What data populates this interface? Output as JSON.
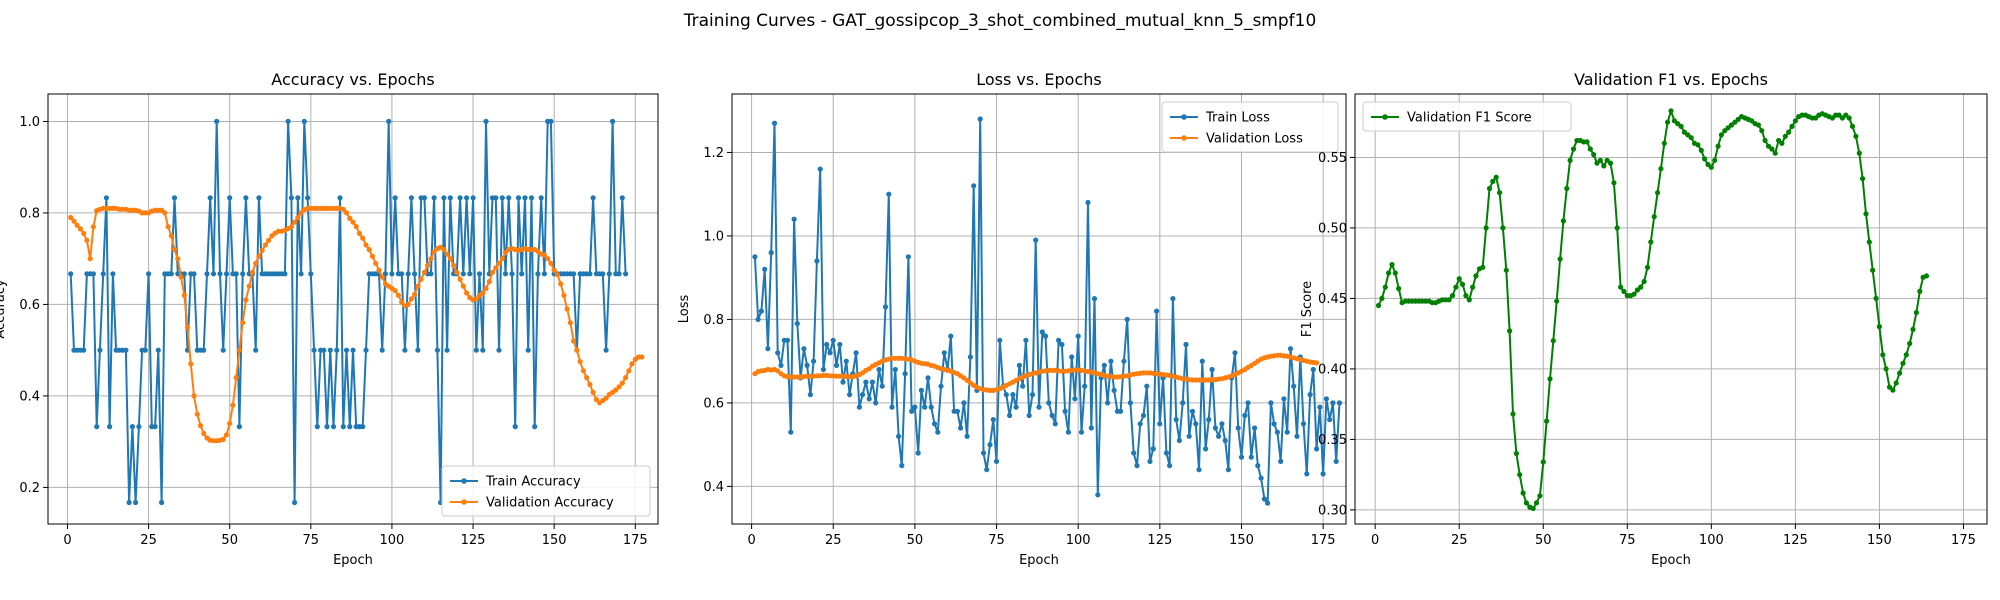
{
  "suptitle": "Training Curves - GAT_gossipcop_3_shot_combined_mutual_knn_5_smpf10",
  "colors": {
    "blue": "#1f77b4",
    "orange": "#ff7f0e",
    "green": "#008000",
    "grid": "#b0b0b0"
  },
  "chart_data": [
    {
      "type": "line",
      "title": "Accuracy vs. Epochs",
      "xlabel": "Epoch",
      "ylabel": "Accuracy",
      "xlim": [
        -6,
        182
      ],
      "ylim": [
        0.12,
        1.06
      ],
      "xticks": [
        0,
        25,
        50,
        75,
        100,
        125,
        150,
        175
      ],
      "yticks": [
        0.2,
        0.4,
        0.6,
        0.8,
        1.0
      ],
      "ytick_decimals": 1,
      "grid": true,
      "legend": "lower right",
      "series": [
        {
          "name": "Train Accuracy",
          "color": "#1f77b4",
          "y": [
            0.667,
            0.5,
            0.5,
            0.5,
            0.5,
            0.667,
            0.667,
            0.667,
            0.333,
            0.5,
            0.667,
            0.833,
            0.333,
            0.667,
            0.5,
            0.5,
            0.5,
            0.5,
            0.167,
            0.333,
            0.167,
            0.333,
            0.5,
            0.5,
            0.667,
            0.333,
            0.333,
            0.5,
            0.167,
            0.667,
            0.667,
            0.667,
            0.833,
            0.667,
            0.667,
            0.667,
            0.5,
            0.667,
            0.667,
            0.5,
            0.5,
            0.5,
            0.667,
            0.833,
            0.667,
            1.0,
            0.667,
            0.5,
            0.667,
            0.833,
            0.667,
            0.667,
            0.333,
            0.667,
            0.833,
            0.667,
            0.667,
            0.5,
            0.833,
            0.667,
            0.667,
            0.667,
            0.667,
            0.667,
            0.667,
            0.667,
            0.667,
            1.0,
            0.833,
            0.167,
            0.833,
            0.667,
            1.0,
            0.833,
            0.667,
            0.5,
            0.333,
            0.5,
            0.5,
            0.333,
            0.5,
            0.333,
            0.5,
            0.833,
            0.333,
            0.5,
            0.333,
            0.5,
            0.333,
            0.333,
            0.333,
            0.5,
            0.667,
            0.667,
            0.667,
            0.667,
            0.5,
            0.667,
            1.0,
            0.667,
            0.833,
            0.667,
            0.667,
            0.5,
            0.667,
            0.833,
            0.667,
            0.5,
            0.833,
            0.833,
            0.667,
            0.667,
            0.833,
            0.5,
            0.167,
            0.833,
            0.5,
            0.833,
            0.667,
            0.667,
            0.833,
            0.667,
            0.833,
            0.667,
            0.833,
            0.5,
            0.667,
            0.5,
            1.0,
            0.667,
            0.833,
            0.833,
            0.5,
            0.833,
            0.667,
            0.833,
            0.667,
            0.333,
            0.833,
            0.667,
            0.833,
            0.5,
            0.833,
            0.333,
            0.667,
            0.833,
            0.667,
            1.0,
            1.0,
            0.667,
            0.667,
            0.667,
            0.667,
            0.667,
            0.667,
            0.667,
            0.5,
            0.667,
            0.667,
            0.667,
            0.667,
            0.833,
            0.667,
            0.667,
            0.667,
            0.5,
            0.667,
            1.0,
            0.667,
            0.667,
            0.833,
            0.667
          ]
        },
        {
          "name": "Validation Accuracy",
          "color": "#ff7f0e",
          "y": [
            0.79,
            0.782,
            0.773,
            0.765,
            0.755,
            0.74,
            0.7,
            0.77,
            0.805,
            0.808,
            0.81,
            0.81,
            0.81,
            0.81,
            0.81,
            0.808,
            0.808,
            0.808,
            0.806,
            0.806,
            0.806,
            0.804,
            0.8,
            0.8,
            0.8,
            0.804,
            0.806,
            0.806,
            0.806,
            0.8,
            0.77,
            0.75,
            0.72,
            0.7,
            0.66,
            0.62,
            0.55,
            0.47,
            0.4,
            0.36,
            0.335,
            0.318,
            0.308,
            0.303,
            0.302,
            0.302,
            0.303,
            0.305,
            0.315,
            0.34,
            0.38,
            0.44,
            0.5,
            0.56,
            0.61,
            0.64,
            0.67,
            0.69,
            0.705,
            0.718,
            0.73,
            0.74,
            0.75,
            0.756,
            0.76,
            0.76,
            0.762,
            0.766,
            0.77,
            0.78,
            0.79,
            0.8,
            0.807,
            0.81,
            0.81,
            0.81,
            0.81,
            0.81,
            0.81,
            0.81,
            0.81,
            0.81,
            0.81,
            0.81,
            0.808,
            0.8,
            0.788,
            0.78,
            0.77,
            0.755,
            0.745,
            0.73,
            0.72,
            0.705,
            0.69,
            0.675,
            0.66,
            0.645,
            0.64,
            0.635,
            0.63,
            0.62,
            0.605,
            0.597,
            0.6,
            0.612,
            0.622,
            0.64,
            0.655,
            0.67,
            0.685,
            0.7,
            0.715,
            0.722,
            0.725,
            0.72,
            0.71,
            0.7,
            0.685,
            0.67,
            0.655,
            0.64,
            0.625,
            0.615,
            0.61,
            0.612,
            0.62,
            0.625,
            0.635,
            0.65,
            0.67,
            0.68,
            0.69,
            0.7,
            0.713,
            0.72,
            0.722,
            0.72,
            0.718,
            0.72,
            0.722,
            0.72,
            0.72,
            0.72,
            0.716,
            0.71,
            0.708,
            0.7,
            0.69,
            0.675,
            0.665,
            0.645,
            0.62,
            0.59,
            0.56,
            0.52,
            0.5,
            0.475,
            0.455,
            0.44,
            0.425,
            0.408,
            0.392,
            0.385,
            0.39,
            0.395,
            0.403,
            0.408,
            0.413,
            0.42,
            0.428,
            0.44,
            0.455,
            0.47,
            0.48,
            0.485,
            0.485
          ]
        }
      ]
    },
    {
      "type": "line",
      "title": "Loss vs. Epochs",
      "xlabel": "Epoch",
      "ylabel": "Loss",
      "xlim": [
        -6,
        182
      ],
      "ylim": [
        0.31,
        1.34
      ],
      "xticks": [
        0,
        25,
        50,
        75,
        100,
        125,
        150,
        175
      ],
      "yticks": [
        0.4,
        0.6,
        0.8,
        1.0,
        1.2
      ],
      "ytick_decimals": 1,
      "grid": true,
      "legend": "upper right",
      "series": [
        {
          "name": "Train Loss",
          "color": "#1f77b4",
          "y": [
            0.95,
            0.8,
            0.82,
            0.92,
            0.73,
            0.96,
            1.27,
            0.72,
            0.69,
            0.75,
            0.75,
            0.53,
            1.04,
            0.79,
            0.66,
            0.73,
            0.69,
            0.62,
            0.7,
            0.94,
            1.16,
            0.68,
            0.74,
            0.72,
            0.75,
            0.69,
            0.74,
            0.65,
            0.7,
            0.62,
            0.67,
            0.72,
            0.59,
            0.62,
            0.65,
            0.61,
            0.65,
            0.6,
            0.68,
            0.64,
            0.83,
            1.1,
            0.59,
            0.68,
            0.52,
            0.45,
            0.67,
            0.95,
            0.58,
            0.59,
            0.48,
            0.63,
            0.59,
            0.66,
            0.59,
            0.55,
            0.53,
            0.64,
            0.72,
            0.68,
            0.76,
            0.58,
            0.58,
            0.54,
            0.6,
            0.52,
            0.71,
            1.12,
            0.63,
            1.28,
            0.48,
            0.44,
            0.5,
            0.56,
            0.46,
            0.75,
            0.64,
            0.62,
            0.57,
            0.62,
            0.59,
            0.69,
            0.64,
            0.75,
            0.57,
            0.62,
            0.99,
            0.59,
            0.77,
            0.76,
            0.6,
            0.57,
            0.55,
            0.75,
            0.74,
            0.58,
            0.53,
            0.71,
            0.61,
            0.76,
            0.53,
            0.64,
            1.08,
            0.54,
            0.85,
            0.38,
            0.66,
            0.69,
            0.6,
            0.7,
            0.63,
            0.58,
            0.58,
            0.7,
            0.8,
            0.6,
            0.48,
            0.45,
            0.55,
            0.57,
            0.64,
            0.46,
            0.49,
            0.82,
            0.55,
            0.66,
            0.48,
            0.45,
            0.85,
            0.56,
            0.51,
            0.6,
            0.74,
            0.52,
            0.58,
            0.55,
            0.44,
            0.7,
            0.49,
            0.56,
            0.68,
            0.54,
            0.52,
            0.55,
            0.51,
            0.44,
            0.66,
            0.72,
            0.54,
            0.47,
            0.57,
            0.6,
            0.47,
            0.54,
            0.45,
            0.42,
            0.37,
            0.36,
            0.6,
            0.55,
            0.53,
            0.46,
            0.61,
            0.53,
            0.73,
            0.64,
            0.52,
            0.71,
            0.55,
            0.43,
            0.62,
            0.68,
            0.49,
            0.59,
            0.43,
            0.61,
            0.56,
            0.6,
            0.46,
            0.6
          ]
        },
        {
          "name": "Validation Loss",
          "color": "#ff7f0e",
          "y": [
            0.67,
            0.675,
            0.677,
            0.678,
            0.68,
            0.679,
            0.68,
            0.677,
            0.67,
            0.665,
            0.663,
            0.662,
            0.662,
            0.662,
            0.662,
            0.663,
            0.664,
            0.664,
            0.664,
            0.665,
            0.665,
            0.666,
            0.666,
            0.665,
            0.665,
            0.664,
            0.664,
            0.664,
            0.663,
            0.663,
            0.663,
            0.665,
            0.668,
            0.672,
            0.678,
            0.682,
            0.688,
            0.692,
            0.696,
            0.7,
            0.703,
            0.705,
            0.707,
            0.707,
            0.707,
            0.707,
            0.706,
            0.705,
            0.703,
            0.7,
            0.697,
            0.695,
            0.694,
            0.693,
            0.69,
            0.688,
            0.685,
            0.682,
            0.68,
            0.678,
            0.676,
            0.673,
            0.67,
            0.665,
            0.66,
            0.654,
            0.648,
            0.642,
            0.638,
            0.634,
            0.632,
            0.631,
            0.63,
            0.63,
            0.632,
            0.634,
            0.638,
            0.642,
            0.646,
            0.65,
            0.654,
            0.658,
            0.662,
            0.665,
            0.668,
            0.67,
            0.672,
            0.674,
            0.676,
            0.677,
            0.678,
            0.678,
            0.678,
            0.677,
            0.676,
            0.676,
            0.677,
            0.678,
            0.679,
            0.679,
            0.678,
            0.677,
            0.675,
            0.674,
            0.672,
            0.67,
            0.668,
            0.666,
            0.664,
            0.663,
            0.662,
            0.662,
            0.663,
            0.664,
            0.665,
            0.667,
            0.669,
            0.67,
            0.671,
            0.672,
            0.672,
            0.672,
            0.671,
            0.67,
            0.669,
            0.668,
            0.667,
            0.666,
            0.664,
            0.662,
            0.66,
            0.658,
            0.657,
            0.656,
            0.655,
            0.655,
            0.655,
            0.655,
            0.655,
            0.655,
            0.656,
            0.656,
            0.657,
            0.658,
            0.66,
            0.662,
            0.665,
            0.668,
            0.672,
            0.676,
            0.68,
            0.685,
            0.69,
            0.695,
            0.7,
            0.705,
            0.708,
            0.71,
            0.712,
            0.713,
            0.714,
            0.714,
            0.713,
            0.712,
            0.71,
            0.708,
            0.706,
            0.704,
            0.702,
            0.7,
            0.698,
            0.697,
            0.696
          ]
        }
      ]
    },
    {
      "type": "line",
      "title": "Validation F1 vs. Epochs",
      "xlabel": "Epoch",
      "ylabel": "F1 Score",
      "xlim": [
        -6,
        182
      ],
      "ylim": [
        0.29,
        0.595
      ],
      "xticks": [
        0,
        25,
        50,
        75,
        100,
        125,
        150,
        175
      ],
      "yticks": [
        0.3,
        0.35,
        0.4,
        0.45,
        0.5,
        0.55
      ],
      "ytick_decimals": 2,
      "grid": true,
      "legend": "upper left",
      "series": [
        {
          "name": "Validation F1 Score",
          "color": "#008000",
          "y": [
            0.445,
            0.45,
            0.458,
            0.468,
            0.474,
            0.468,
            0.457,
            0.447,
            0.448,
            0.448,
            0.448,
            0.448,
            0.448,
            0.448,
            0.448,
            0.448,
            0.447,
            0.447,
            0.448,
            0.449,
            0.449,
            0.449,
            0.452,
            0.458,
            0.464,
            0.46,
            0.452,
            0.449,
            0.458,
            0.466,
            0.471,
            0.472,
            0.5,
            0.528,
            0.533,
            0.536,
            0.525,
            0.5,
            0.47,
            0.427,
            0.368,
            0.34,
            0.325,
            0.312,
            0.305,
            0.302,
            0.301,
            0.305,
            0.31,
            0.334,
            0.363,
            0.393,
            0.42,
            0.448,
            0.478,
            0.505,
            0.528,
            0.548,
            0.556,
            0.562,
            0.562,
            0.561,
            0.561,
            0.556,
            0.552,
            0.546,
            0.548,
            0.544,
            0.548,
            0.546,
            0.532,
            0.5,
            0.458,
            0.455,
            0.452,
            0.452,
            0.453,
            0.456,
            0.458,
            0.462,
            0.472,
            0.49,
            0.508,
            0.525,
            0.542,
            0.56,
            0.575,
            0.583,
            0.576,
            0.574,
            0.572,
            0.568,
            0.566,
            0.564,
            0.56,
            0.559,
            0.555,
            0.549,
            0.545,
            0.543,
            0.548,
            0.558,
            0.566,
            0.569,
            0.571,
            0.573,
            0.575,
            0.577,
            0.579,
            0.578,
            0.577,
            0.576,
            0.574,
            0.573,
            0.569,
            0.562,
            0.558,
            0.556,
            0.553,
            0.562,
            0.56,
            0.565,
            0.568,
            0.572,
            0.576,
            0.579,
            0.58,
            0.58,
            0.579,
            0.578,
            0.578,
            0.58,
            0.581,
            0.58,
            0.579,
            0.578,
            0.58,
            0.58,
            0.578,
            0.58,
            0.578,
            0.572,
            0.565,
            0.553,
            0.535,
            0.51,
            0.49,
            0.47,
            0.45,
            0.43,
            0.41,
            0.4,
            0.387,
            0.385,
            0.39,
            0.397,
            0.404,
            0.41,
            0.418,
            0.428,
            0.44,
            0.455,
            0.465,
            0.466
          ]
        }
      ]
    }
  ]
}
